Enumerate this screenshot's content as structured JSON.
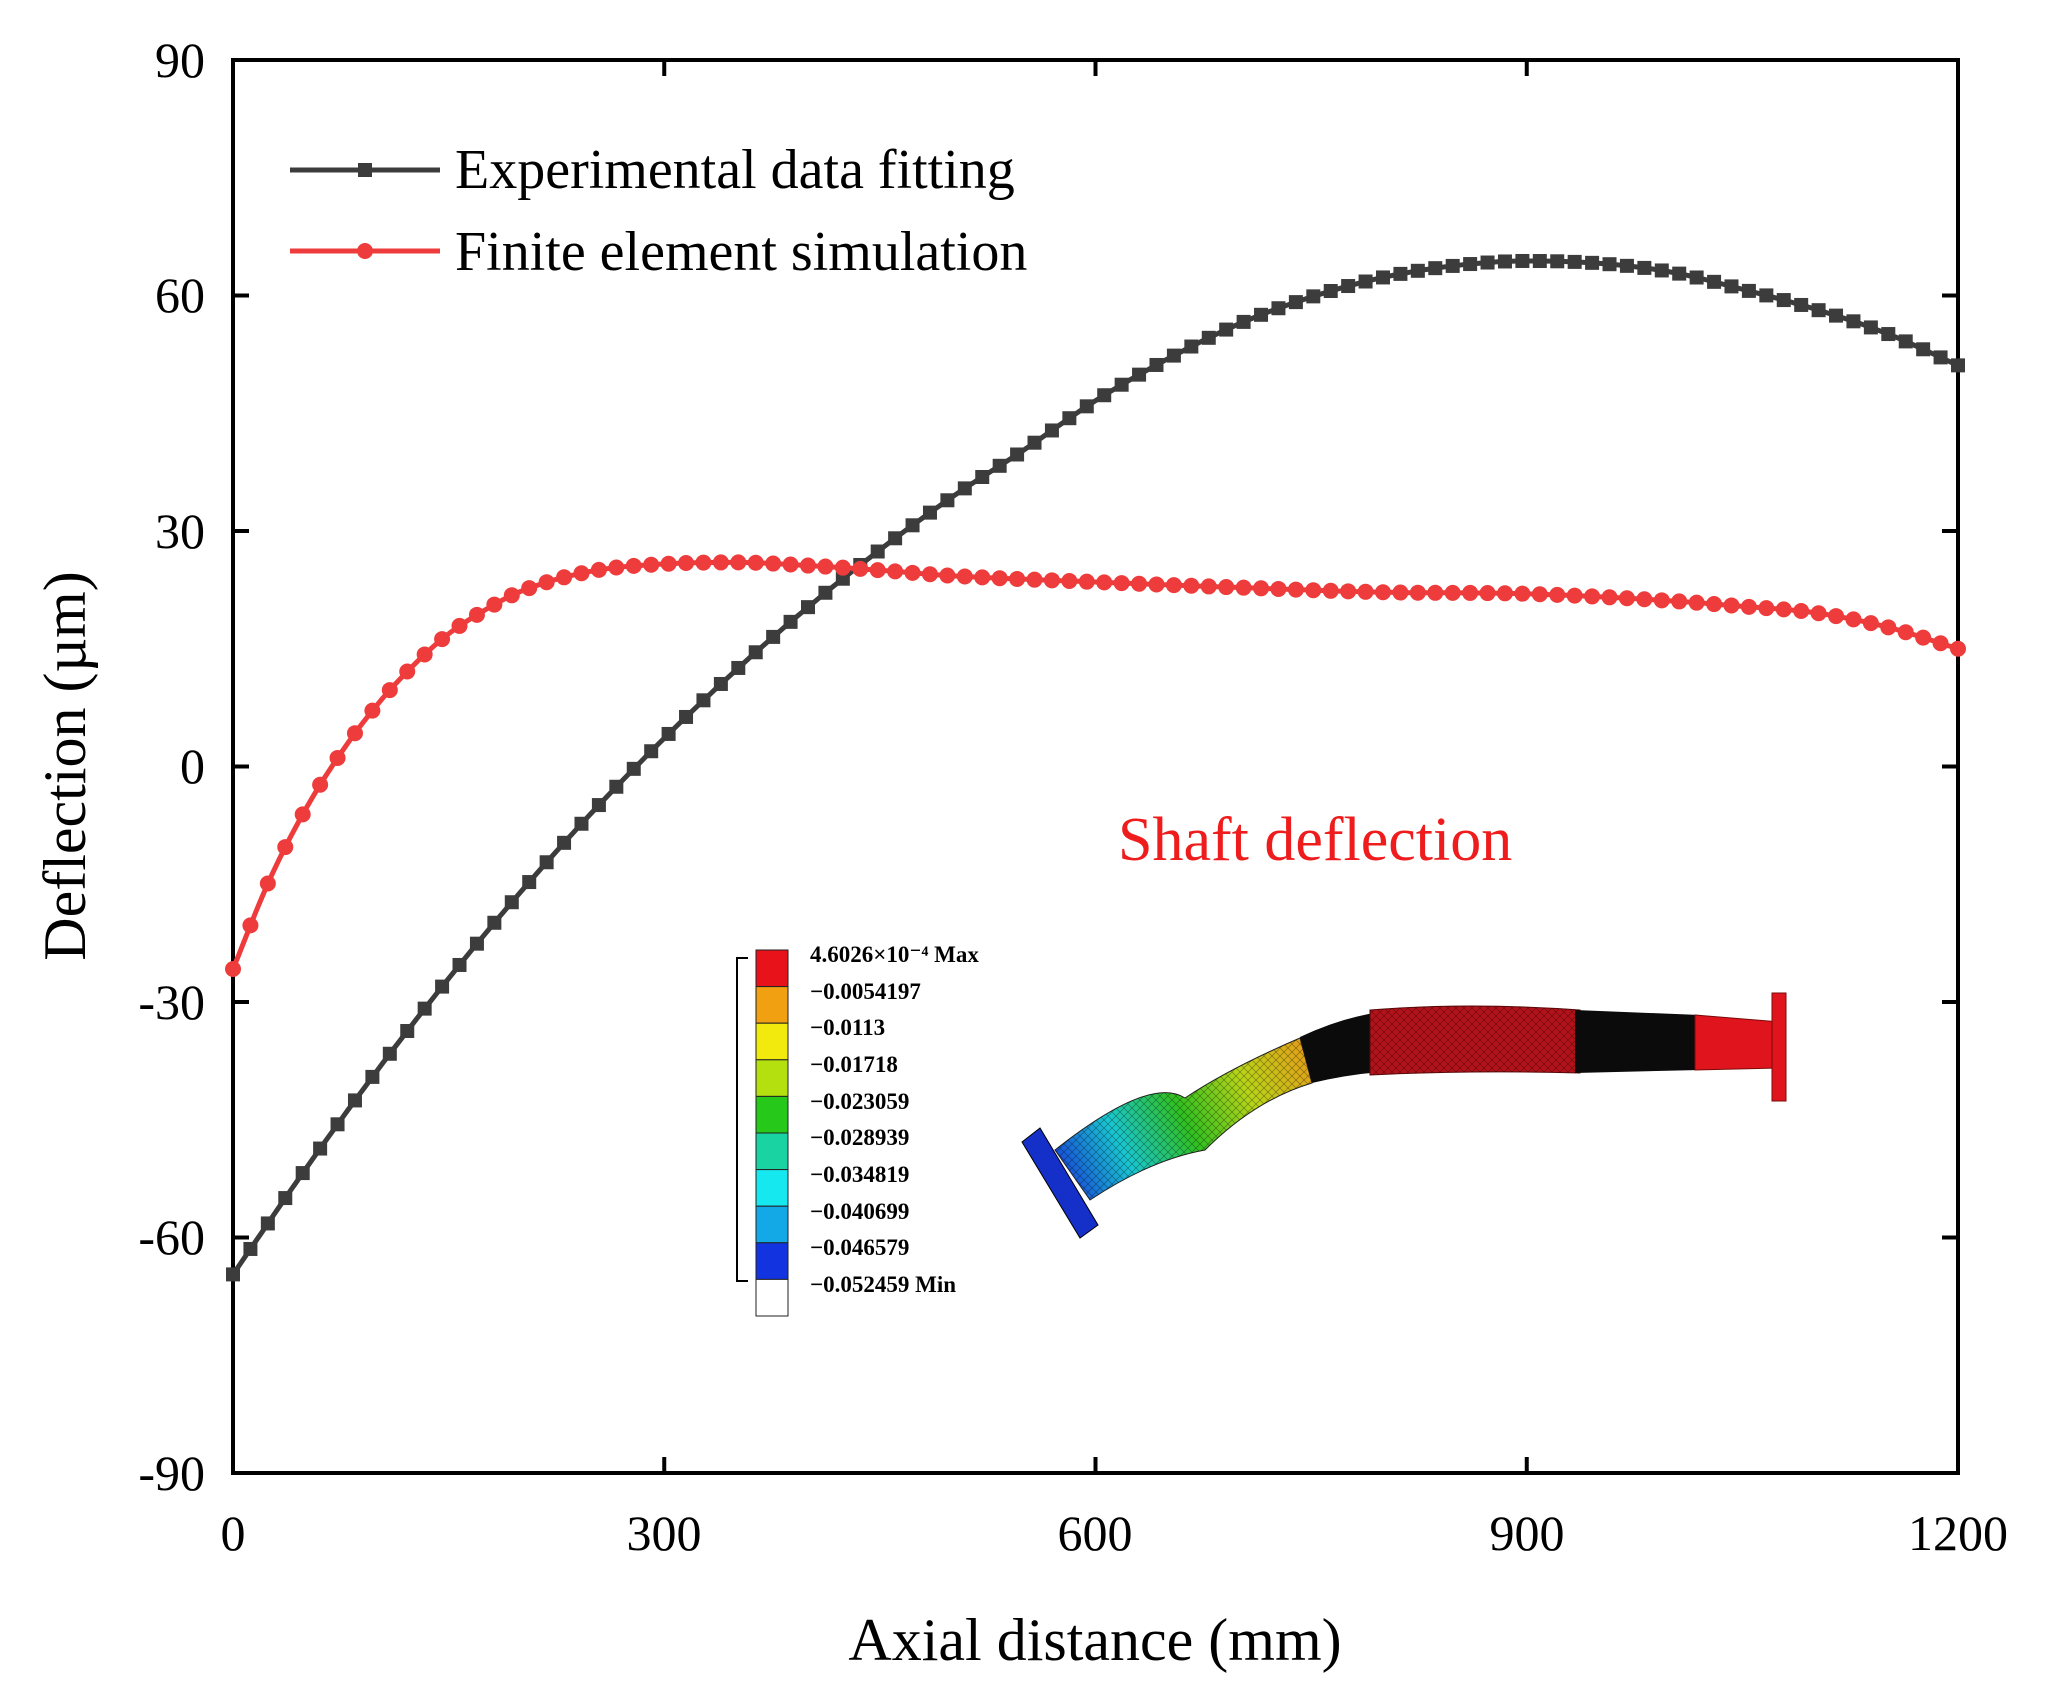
{
  "chart_data": {
    "type": "line",
    "title": "",
    "xlabel": "Axial distance (mm)",
    "ylabel": "Deflection (µm)",
    "xlim": [
      0,
      1200
    ],
    "ylim": [
      -90,
      90
    ],
    "xticks": [
      "0",
      "300",
      "600",
      "900",
      "1200"
    ],
    "yticks": [
      "90",
      "60",
      "30",
      "0",
      "-30",
      "-60",
      "-90"
    ],
    "grid": false,
    "legend_position": "top-left",
    "series": [
      {
        "name": "Experimental data fitting",
        "color": "#3c3c3c",
        "marker": "square",
        "x": [
          0,
          50,
          100,
          150,
          200,
          250,
          300,
          350,
          400,
          450,
          500,
          550,
          600,
          650,
          700,
          750,
          800,
          850,
          900,
          950,
          1000,
          1050,
          1100,
          1150,
          1200
        ],
        "y": [
          -64.7,
          -51.4,
          -38.8,
          -27.0,
          -16.0,
          -5.8,
          3.6,
          12.3,
          20.3,
          27.6,
          34.3,
          40.3,
          46.6,
          51.9,
          56.4,
          59.8,
          62.3,
          63.8,
          64.4,
          64.1,
          63.0,
          60.8,
          58.3,
          55.2,
          51.1
        ]
      },
      {
        "name": "Finite element simulation",
        "color": "#ee3b3b",
        "marker": "circle",
        "x": [
          0,
          25,
          50,
          75,
          100,
          125,
          150,
          175,
          200,
          250,
          300,
          350,
          400,
          450,
          500,
          600,
          700,
          800,
          900,
          1000,
          1050,
          1100,
          1150,
          1200
        ],
        "y": [
          -25.8,
          -14.6,
          -5.6,
          1.7,
          7.8,
          12.8,
          16.9,
          19.9,
          22.3,
          24.9,
          25.8,
          26.0,
          25.6,
          25.0,
          24.3,
          23.5,
          22.8,
          22.2,
          22.0,
          21.1,
          20.4,
          19.6,
          17.8,
          15.0
        ]
      }
    ],
    "annotations": [
      "Shaft deflection"
    ]
  },
  "inset": {
    "colorbar_labels": [
      "4.6026×10⁻⁴ Max",
      "−0.0054197",
      "−0.0113",
      "−0.01718",
      "−0.023059",
      "−0.028939",
      "−0.034819",
      "−0.040699",
      "−0.046579",
      "−0.052459 Min"
    ],
    "colorbar_colors": [
      "#e8121b",
      "#f0a010",
      "#f2ea0c",
      "#b5e010",
      "#26c81a",
      "#19d3a2",
      "#16e8ef",
      "#12a9e6",
      "#1233e0",
      "#ffffff"
    ]
  },
  "colors": {
    "axis": "#000000",
    "annotation": "#ee1c1c"
  }
}
